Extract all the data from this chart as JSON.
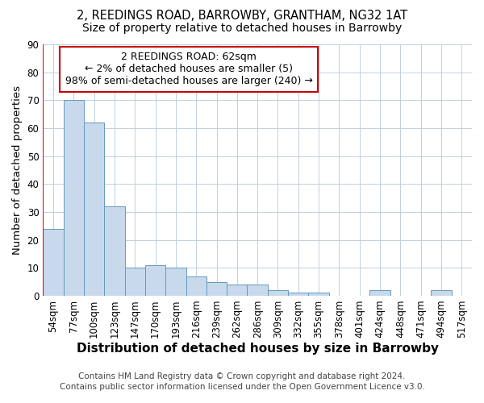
{
  "title1": "2, REEDINGS ROAD, BARROWBY, GRANTHAM, NG32 1AT",
  "title2": "Size of property relative to detached houses in Barrowby",
  "xlabel": "Distribution of detached houses by size in Barrowby",
  "ylabel": "Number of detached properties",
  "categories": [
    "54sqm",
    "77sqm",
    "100sqm",
    "123sqm",
    "147sqm",
    "170sqm",
    "193sqm",
    "216sqm",
    "239sqm",
    "262sqm",
    "286sqm",
    "309sqm",
    "332sqm",
    "355sqm",
    "378sqm",
    "401sqm",
    "424sqm",
    "448sqm",
    "471sqm",
    "494sqm",
    "517sqm"
  ],
  "values": [
    24,
    70,
    62,
    32,
    10,
    11,
    10,
    7,
    5,
    4,
    4,
    2,
    1,
    1,
    0,
    0,
    2,
    0,
    0,
    2,
    0
  ],
  "bar_color": "#c8d9ec",
  "bar_edge_color": "#6699bb",
  "bar_linewidth": 0.7,
  "ylim": [
    0,
    90
  ],
  "yticks": [
    0,
    10,
    20,
    30,
    40,
    50,
    60,
    70,
    80,
    90
  ],
  "annotation_box_text": "2 REEDINGS ROAD: 62sqm\n← 2% of detached houses are smaller (5)\n98% of semi-detached houses are larger (240) →",
  "annotation_box_color": "#ffffff",
  "annotation_box_edge_color": "#cc0000",
  "footer1": "Contains HM Land Registry data © Crown copyright and database right 2024.",
  "footer2": "Contains public sector information licensed under the Open Government Licence v3.0.",
  "background_color": "#ffffff",
  "grid_color": "#c0d0e0",
  "title1_fontsize": 10.5,
  "title2_fontsize": 10,
  "xlabel_fontsize": 11,
  "ylabel_fontsize": 9.5,
  "tick_fontsize": 8.5,
  "footer_fontsize": 7.5,
  "annotation_fontsize": 9
}
